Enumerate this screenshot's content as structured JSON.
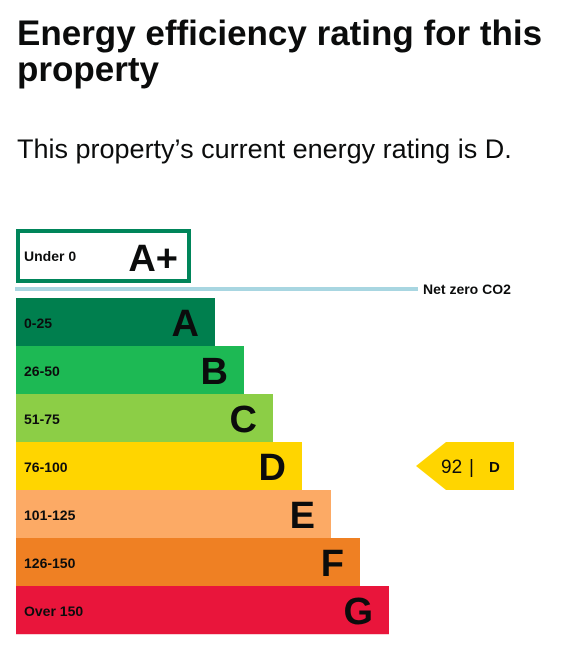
{
  "page": {
    "title": "Energy efficiency rating for this property",
    "subtitle": "This property’s current energy rating is D."
  },
  "colors": {
    "a_plus_border": "#00855a",
    "net_zero_line": "#a8d6e1",
    "text": "#0b0c0c"
  },
  "chart_data": {
    "type": "bar",
    "title": "",
    "xlabel": "",
    "ylabel": "",
    "a_plus": {
      "range": "Under 0",
      "letter": "A+"
    },
    "net_zero_label": "Net zero CO2",
    "bands": [
      {
        "letter": "A",
        "range": "0-25",
        "color": "#007f4e",
        "max_score": 25
      },
      {
        "letter": "B",
        "range": "26-50",
        "color": "#1db954",
        "max_score": 50
      },
      {
        "letter": "C",
        "range": "51-75",
        "color": "#8cce46",
        "max_score": 75
      },
      {
        "letter": "D",
        "range": "76-100",
        "color": "#ffd500",
        "max_score": 100
      },
      {
        "letter": "E",
        "range": "101-125",
        "color": "#fcaa65",
        "max_score": 125
      },
      {
        "letter": "F",
        "range": "126-150",
        "color": "#ef8023",
        "max_score": 150
      },
      {
        "letter": "G",
        "range": "Over 150",
        "color": "#e9153b",
        "max_score": 175
      }
    ],
    "current": {
      "score": 92,
      "separator": "|",
      "letter": "D",
      "color": "#ffd500"
    }
  }
}
